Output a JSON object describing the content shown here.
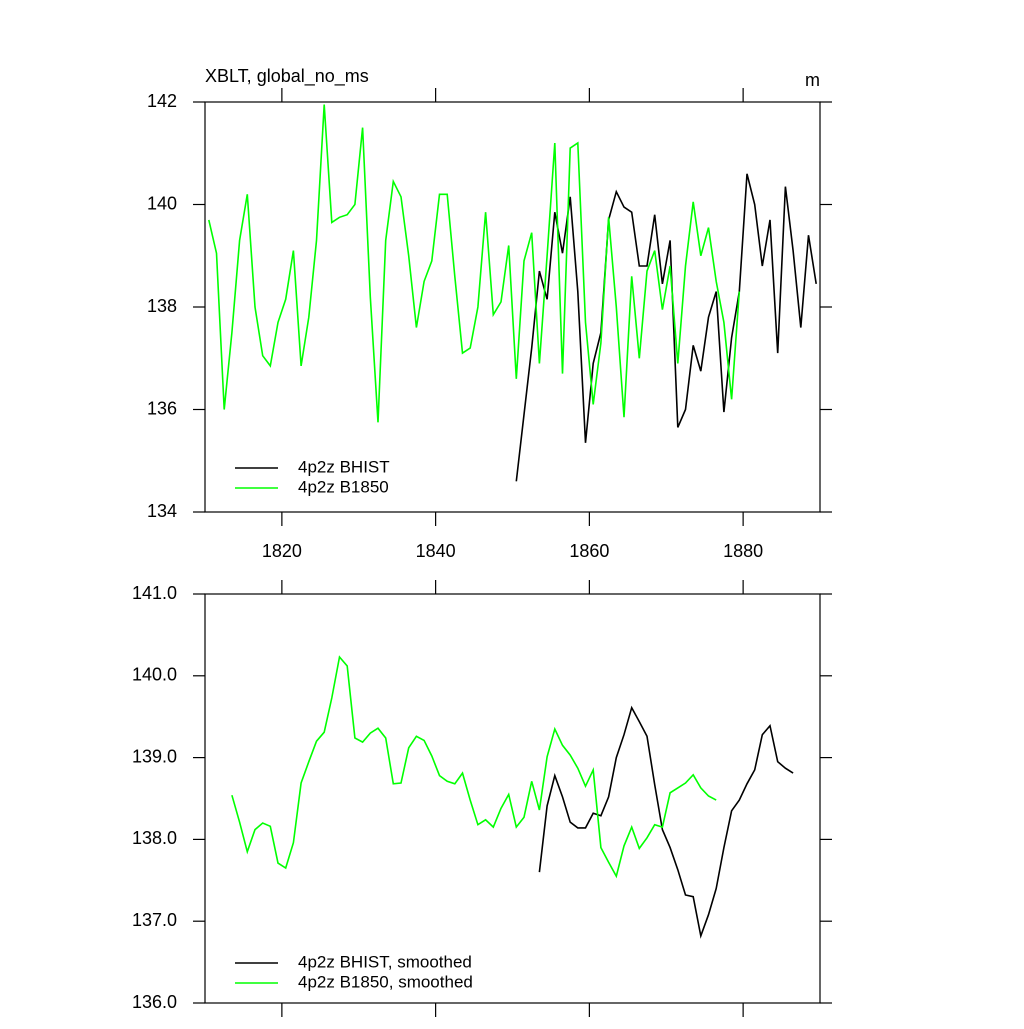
{
  "chart_data": [
    {
      "type": "line",
      "title": "XBLT, global_no_ms",
      "units": "m",
      "xlim": [
        1810,
        1890
      ],
      "xticks": [
        1820,
        1840,
        1860,
        1880
      ],
      "show_xtick_labels": true,
      "ylim": [
        134,
        142
      ],
      "yticks": [
        134,
        136,
        138,
        140,
        142
      ],
      "series": [
        {
          "name": "4p2z BHIST",
          "color": "#000000",
          "x": [
            1850.5,
            1851.5,
            1852.5,
            1853.5,
            1854.5,
            1855.5,
            1856.5,
            1857.5,
            1858.5,
            1859.5,
            1860.5,
            1861.5,
            1862.5,
            1863.5,
            1864.5,
            1865.5,
            1866.5,
            1867.5,
            1868.5,
            1869.5,
            1870.5,
            1871.5,
            1872.5,
            1873.5,
            1874.5,
            1875.5,
            1876.5,
            1877.5,
            1878.5,
            1879.5,
            1880.5,
            1881.5,
            1882.5,
            1883.5,
            1884.5,
            1885.5,
            1886.5,
            1887.5,
            1888.5,
            1889.5
          ],
          "values": [
            134.6,
            135.9,
            137.2,
            138.7,
            138.15,
            139.85,
            139.05,
            140.15,
            138.3,
            135.35,
            136.9,
            137.5,
            139.7,
            140.25,
            139.95,
            139.85,
            138.8,
            138.8,
            139.8,
            138.45,
            139.3,
            135.65,
            136.0,
            137.25,
            136.75,
            137.8,
            138.3,
            135.95,
            137.4,
            138.3,
            140.6,
            140.0,
            138.8,
            139.7,
            137.1,
            140.35,
            139.1,
            137.6,
            139.4,
            138.45
          ]
        },
        {
          "name": "4p2z B1850",
          "color": "#00ff00",
          "x": [
            1810.5,
            1811.5,
            1812.5,
            1813.5,
            1814.5,
            1815.5,
            1816.5,
            1817.5,
            1818.5,
            1819.5,
            1820.5,
            1821.5,
            1822.5,
            1823.5,
            1824.5,
            1825.5,
            1826.5,
            1827.5,
            1828.5,
            1829.5,
            1830.5,
            1831.5,
            1832.5,
            1833.5,
            1834.5,
            1835.5,
            1836.5,
            1837.5,
            1838.5,
            1839.5,
            1840.5,
            1841.5,
            1842.5,
            1843.5,
            1844.5,
            1845.5,
            1846.5,
            1847.5,
            1848.5,
            1849.5,
            1850.5,
            1851.5,
            1852.5,
            1853.5,
            1854.5,
            1855.5,
            1856.5,
            1857.5,
            1858.5,
            1859.5,
            1860.5,
            1861.5,
            1862.5,
            1863.5,
            1864.5,
            1865.5,
            1866.5,
            1867.5,
            1868.5,
            1869.5,
            1870.5,
            1871.5,
            1872.5,
            1873.5,
            1874.5,
            1875.5,
            1876.5,
            1877.5,
            1878.5,
            1879.5
          ],
          "values": [
            139.7,
            139.05,
            136.0,
            137.5,
            139.3,
            140.2,
            138.0,
            137.05,
            136.85,
            137.7,
            138.15,
            139.1,
            136.85,
            137.8,
            139.3,
            141.95,
            139.65,
            139.75,
            139.8,
            140.0,
            141.5,
            138.2,
            135.75,
            139.3,
            140.45,
            140.15,
            139.0,
            137.6,
            138.5,
            138.9,
            140.2,
            140.2,
            138.6,
            137.1,
            137.2,
            138.0,
            139.85,
            137.85,
            138.1,
            139.2,
            136.6,
            138.9,
            139.45,
            136.9,
            139.0,
            141.2,
            136.7,
            141.1,
            141.2,
            137.7,
            136.1,
            137.3,
            139.75,
            138.0,
            135.85,
            138.6,
            137.0,
            138.7,
            139.1,
            137.95,
            138.8,
            136.9,
            138.8,
            140.05,
            139.0,
            139.55,
            138.5,
            137.7,
            136.2,
            138.3
          ]
        }
      ]
    },
    {
      "type": "line",
      "xlim": [
        1810,
        1890
      ],
      "xticks": [
        1820,
        1840,
        1860,
        1880
      ],
      "show_xtick_labels": false,
      "ylim": [
        136,
        141
      ],
      "yticks": [
        {
          "value": 136,
          "label": "136.0"
        },
        {
          "value": 137,
          "label": "137.0"
        },
        {
          "value": 138,
          "label": "138.0"
        },
        {
          "value": 139,
          "label": "139.0"
        },
        {
          "value": 140,
          "label": "140.0"
        },
        {
          "value": 141,
          "label": "141.0"
        }
      ],
      "series": [
        {
          "name": "4p2z BHIST, smoothed",
          "color": "#000000",
          "x": [
            1853.5,
            1854.5,
            1855.5,
            1856.5,
            1857.5,
            1858.5,
            1859.5,
            1860.5,
            1861.5,
            1862.5,
            1863.5,
            1864.5,
            1865.5,
            1866.5,
            1867.5,
            1868.5,
            1869.5,
            1870.5,
            1871.5,
            1872.5,
            1873.5,
            1874.5,
            1875.5,
            1876.5,
            1877.5,
            1878.5,
            1879.5,
            1880.5,
            1881.5,
            1882.5,
            1883.5,
            1884.5,
            1885.5,
            1886.5
          ],
          "values": [
            137.6,
            138.41,
            138.78,
            138.52,
            138.21,
            138.14,
            138.14,
            138.32,
            138.29,
            138.52,
            139.0,
            139.28,
            139.61,
            139.44,
            139.26,
            138.67,
            138.12,
            137.9,
            137.63,
            137.32,
            137.3,
            136.82,
            137.08,
            137.4,
            137.9,
            138.35,
            138.48,
            138.68,
            138.85,
            139.28,
            139.39,
            138.95,
            138.87,
            138.81
          ]
        },
        {
          "name": "4p2z B1850, smoothed",
          "color": "#00ff00",
          "x": [
            1813.5,
            1814.5,
            1815.5,
            1816.5,
            1817.5,
            1818.5,
            1819.5,
            1820.5,
            1821.5,
            1822.5,
            1823.5,
            1824.5,
            1825.5,
            1826.5,
            1827.5,
            1828.5,
            1829.5,
            1830.5,
            1831.5,
            1832.5,
            1833.5,
            1834.5,
            1835.5,
            1836.5,
            1837.5,
            1838.5,
            1839.5,
            1840.5,
            1841.5,
            1842.5,
            1843.5,
            1844.5,
            1845.5,
            1846.5,
            1847.5,
            1848.5,
            1849.5,
            1850.5,
            1851.5,
            1852.5,
            1853.5,
            1854.5,
            1855.5,
            1856.5,
            1857.5,
            1858.5,
            1859.5,
            1860.5,
            1861.5,
            1862.5,
            1863.5,
            1864.5,
            1865.5,
            1866.5,
            1867.5,
            1868.5,
            1869.5,
            1870.5,
            1871.5,
            1872.5,
            1873.5,
            1874.5,
            1875.5,
            1876.5
          ],
          "values": [
            138.54,
            138.21,
            137.85,
            138.12,
            138.2,
            138.16,
            137.71,
            137.65,
            137.96,
            138.69,
            138.95,
            139.2,
            139.31,
            139.73,
            140.23,
            140.12,
            139.24,
            139.19,
            139.3,
            139.36,
            139.24,
            138.68,
            138.69,
            139.12,
            139.26,
            139.21,
            139.02,
            138.78,
            138.71,
            138.68,
            138.81,
            138.48,
            138.18,
            138.24,
            138.15,
            138.38,
            138.55,
            138.15,
            138.27,
            138.71,
            138.36,
            139.01,
            139.35,
            139.15,
            139.03,
            138.87,
            138.65,
            138.85,
            137.9,
            137.72,
            137.55,
            137.92,
            138.15,
            137.89,
            138.02,
            138.18,
            138.15,
            138.57,
            138.63,
            138.69,
            138.79,
            138.63,
            138.53,
            138.48
          ]
        }
      ]
    }
  ]
}
